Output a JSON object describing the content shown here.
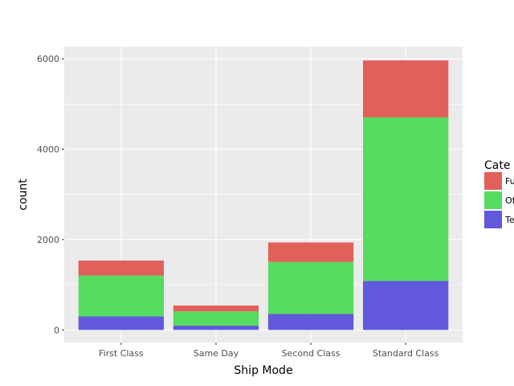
{
  "chart_data": {
    "type": "bar",
    "stacked": true,
    "xlabel": "Ship Mode",
    "ylabel": "count",
    "categories": [
      "First Class",
      "Same Day",
      "Second Class",
      "Standard Class"
    ],
    "series": [
      {
        "name": "Te",
        "color": "#619cff",
        "values": [
          300,
          95,
          355,
          1085
        ]
      },
      {
        "name": "Of",
        "color": "#00ba38",
        "values": [
          905,
          315,
          1150,
          3620
        ]
      },
      {
        "name": "Fu",
        "color": "#f8766d",
        "values": [
          330,
          130,
          430,
          1260
        ]
      }
    ],
    "yticks": [
      0,
      2000,
      4000,
      6000
    ],
    "ylim": [
      -280,
      6270
    ],
    "grid": true,
    "legend": {
      "title": "Cate",
      "position": "right",
      "entries": [
        {
          "label": "Fu",
          "color": "#e1605a"
        },
        {
          "label": "Of",
          "color": "#56dc5e"
        },
        {
          "label": "Te",
          "color": "#6258dc"
        }
      ]
    },
    "colors": {
      "Fu": "#e1605a",
      "Of": "#56dc5e",
      "Te": "#6258dc",
      "panel": "#ebebeb",
      "grid": "#ffffff"
    }
  }
}
